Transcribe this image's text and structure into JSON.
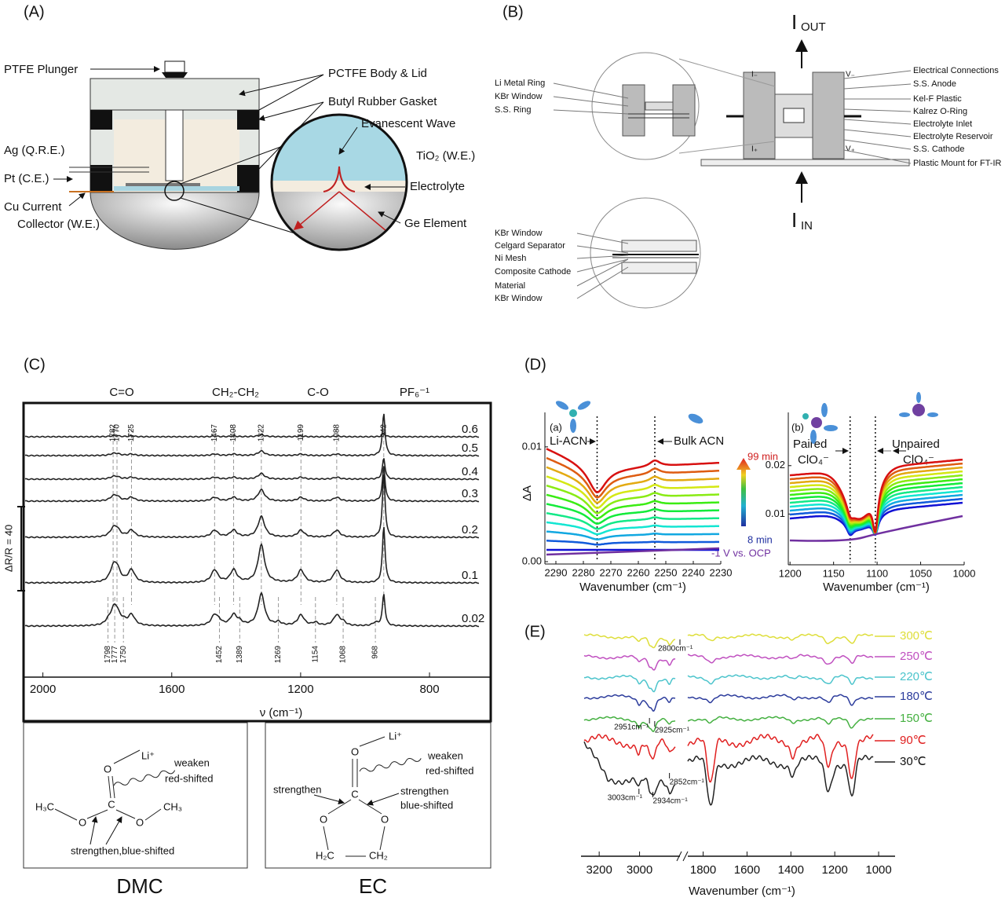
{
  "A": {
    "label": "(A)",
    "plunger": "PTFE Plunger",
    "body": "PCTFE Body & Lid",
    "gasket": "Butyl Rubber Gasket",
    "wave": "Evanescent Wave",
    "ag": "Ag (Q.R.E.)",
    "tio2": "TiO₂ (W.E.)",
    "pt": "Pt (C.E.)",
    "electrolyte": "Electrolyte",
    "cu": [
      "Cu Current",
      "Collector (W.E.)"
    ],
    "ge": "Ge Element"
  },
  "B": {
    "label": "(B)",
    "i_out": {
      "main": "I",
      "sub": "OUT"
    },
    "i_in": {
      "main": "I",
      "sub": "IN"
    },
    "left_labels": [
      "Li Metal Ring",
      "KBr Window",
      "S.S. Ring"
    ],
    "bottom_labels": [
      "KBr Window",
      "Celgard Separator",
      "Ni Mesh",
      "Composite Cathode",
      "Material",
      "KBr Window"
    ],
    "right_labels": [
      "Electrical Connections",
      "S.S. Anode",
      "Kel-F Plastic",
      "Kalrez     O-Ring",
      "Electrolyte Inlet",
      "Electrolyte Reservoir",
      "S.S. Cathode",
      "Plastic Mount for FT-IR"
    ],
    "terminals": [
      "I₋",
      "V₋",
      "I₊",
      "V₊"
    ]
  },
  "C": {
    "label": "(C)",
    "groups": [
      "C=O",
      "CH₂-CH₂",
      "C-O",
      "PF₆⁻¹"
    ],
    "peaks_top": [
      1782,
      1770,
      1725,
      1467,
      1408,
      1322,
      1199,
      1088,
      942
    ],
    "peaks_bottom": [
      1798,
      1777,
      1750,
      1452,
      1389,
      1269,
      1154,
      1068,
      968
    ],
    "traces": [
      0.6,
      0.5,
      0.4,
      0.3,
      0.2,
      0.1,
      0.02
    ],
    "scale_bar": "ΔR/R = 40",
    "xlabel": "ν (cm⁻¹)",
    "xlim": [
      2060,
      610
    ],
    "xticks": [
      2000,
      1600,
      1200,
      800
    ],
    "dmc": {
      "title": "DMC",
      "li": "Li⁺",
      "weaken": "weaken",
      "red": "red-shifted",
      "left": "H₃C",
      "right": "CH₃",
      "strengthen": "strengthen,blue-shifted",
      "atoms": [
        "O",
        "C",
        "O",
        "O"
      ]
    },
    "ec": {
      "title": "EC",
      "li": "Li⁺",
      "weaken": "weaken",
      "red": "red-shifted",
      "strengthen_left": "strengthen",
      "strengthen_right": "strengthen",
      "blue": "blue-shifted",
      "left": "H₂C",
      "right": "CH₂",
      "atoms": [
        "O",
        "C",
        "O",
        "O"
      ]
    }
  },
  "D": {
    "label": "(D)",
    "a": {
      "tag": "(a)",
      "ylabel": "ΔA",
      "xlabel": "Wavenumber (cm⁻¹)",
      "xlim": [
        2294,
        2230
      ],
      "xticks": [
        2290,
        2280,
        2270,
        2260,
        2250,
        2240,
        2230
      ],
      "ylim": [
        0,
        0.013
      ],
      "yticks": [
        {
          "value": 0,
          "label": "0.00"
        },
        0.01
      ],
      "markers": [
        2275,
        2254
      ],
      "marker_labels": [
        "Li-ACN",
        "Bulk ACN"
      ],
      "time_end": "99 min",
      "time_start": "8 min",
      "reference": "-1 V vs. OCP"
    },
    "b": {
      "tag": "(b)",
      "xlabel": "Wavenumber (cm⁻¹)",
      "xlim": [
        1202,
        1000
      ],
      "xticks": [
        1200,
        1150,
        1100,
        1050,
        1000
      ],
      "ylim": [
        0,
        0.031
      ],
      "yticks": [
        0.01,
        0.02
      ],
      "markers": [
        1131,
        1102
      ],
      "marker_labels": [
        [
          "Paired",
          "ClO₄⁻"
        ],
        [
          "Unpaired",
          "ClO₄⁻"
        ]
      ]
    }
  },
  "E": {
    "label": "(E)",
    "xlabel": "Wavenumber (cm⁻¹)",
    "segments": [
      {
        "xlim": [
          3290,
          2800
        ],
        "xticks": [
          3200,
          3000
        ]
      },
      {
        "xlim": [
          1870,
          925
        ],
        "xticks": [
          1800,
          1600,
          1400,
          1200,
          1000
        ]
      }
    ],
    "series": [
      {
        "name": "300℃",
        "color": "#dede3a"
      },
      {
        "name": "250℃",
        "color": "#c050c0"
      },
      {
        "name": "220℃",
        "color": "#4cc4cc"
      },
      {
        "name": "180℃",
        "color": "#2c3c9c"
      },
      {
        "name": "150℃",
        "color": "#44b040"
      },
      {
        "name": "90℃",
        "color": "#e02020"
      },
      {
        "name": "30℃",
        "color": "#222222"
      }
    ],
    "annotations": [
      {
        "value": 2800,
        "label": "2800cm⁻¹"
      },
      {
        "value": 2951,
        "label": "2951cm⁻¹"
      },
      {
        "value": 2925,
        "label": "2925cm⁻¹"
      },
      {
        "value": 2852,
        "label": "2852cm⁻¹"
      },
      {
        "value": 3003,
        "label": "3003cm⁻¹"
      },
      {
        "value": 2934,
        "label": "2934cm⁻¹"
      }
    ]
  }
}
